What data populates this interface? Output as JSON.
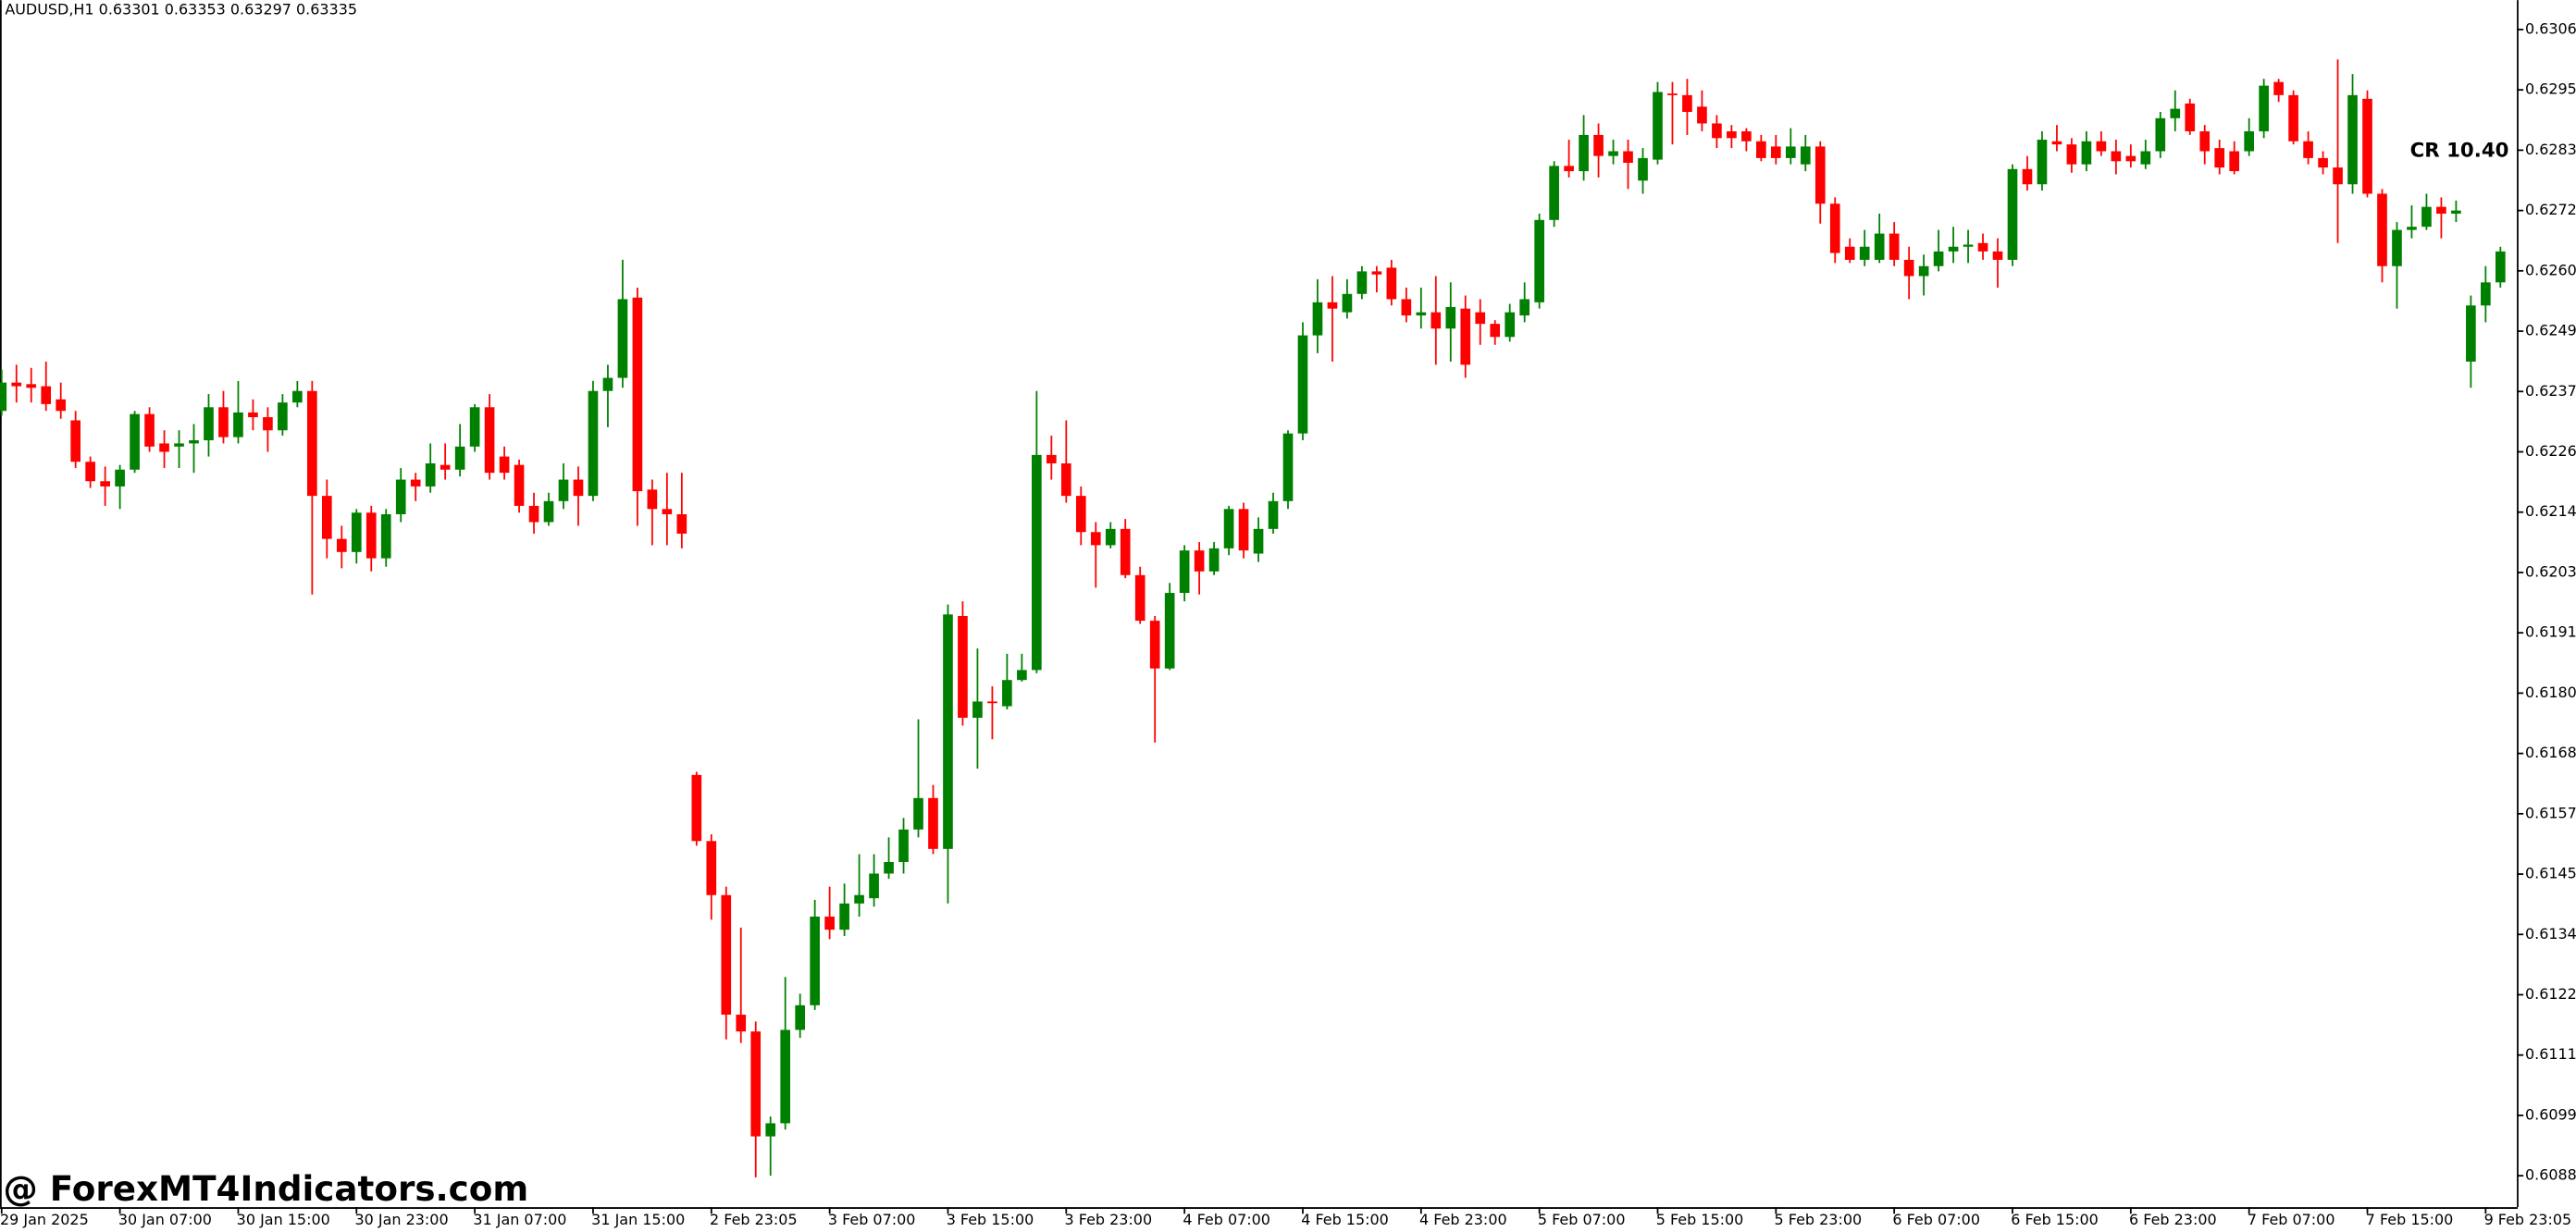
{
  "chart_data": {
    "type": "candlestick",
    "title": "AUDUSD,H1  0.63301 0.63353 0.63297 0.63335",
    "annotation": "CR 10.40",
    "annotation_color": "#1e90ff",
    "watermark": "@ ForexMT4Indicators.com",
    "up_color": "#008000",
    "down_color": "#ff0000",
    "grid": false,
    "categories": [
      "29 Jan 2025",
      null,
      null,
      null,
      null,
      null,
      null,
      null,
      "30 Jan 07:00",
      null,
      null,
      null,
      null,
      null,
      null,
      null,
      "30 Jan 15:00",
      null,
      null,
      null,
      null,
      null,
      null,
      null,
      "30 Jan 23:00",
      null,
      null,
      null,
      null,
      null,
      null,
      null,
      "31 Jan 07:00",
      null,
      null,
      null,
      null,
      null,
      null,
      null,
      "31 Jan 15:00",
      null,
      null,
      null,
      null,
      null,
      null,
      null,
      "2 Feb 23:05",
      null,
      null,
      null,
      null,
      null,
      null,
      null,
      "3 Feb 07:00",
      null,
      null,
      null,
      null,
      null,
      null,
      null,
      "3 Feb 15:00",
      null,
      null,
      null,
      null,
      null,
      null,
      null,
      "3 Feb 23:00",
      null,
      null,
      null,
      null,
      null,
      null,
      null,
      "4 Feb 07:00",
      null,
      null,
      null,
      null,
      null,
      null,
      null,
      "4 Feb 15:00",
      null,
      null,
      null,
      null,
      null,
      null,
      null,
      "4 Feb 23:00",
      null,
      null,
      null,
      null,
      null,
      null,
      null,
      "5 Feb 07:00",
      null,
      null,
      null,
      null,
      null,
      null,
      null,
      "5 Feb 15:00",
      null,
      null,
      null,
      null,
      null,
      null,
      null,
      "5 Feb 23:00",
      null,
      null,
      null,
      null,
      null,
      null,
      null,
      "6 Feb 07:00",
      null,
      null,
      null,
      null,
      null,
      null,
      null,
      "6 Feb 15:00",
      null,
      null,
      null,
      null,
      null,
      null,
      null,
      "6 Feb 23:00",
      null,
      null,
      null,
      null,
      null,
      null,
      null,
      "7 Feb 07:00",
      null,
      null,
      null,
      null,
      null,
      null,
      null,
      "7 Feb 15:00",
      null,
      null,
      null,
      null,
      null,
      null,
      null,
      "9 Feb 23:05",
      null
    ],
    "open": [
      0.62338,
      0.62392,
      0.62389,
      0.62385,
      0.6236,
      0.6232,
      0.62241,
      0.62204,
      0.62194,
      0.62226,
      0.62332,
      0.62276,
      0.6227,
      0.62276,
      0.62282,
      0.62345,
      0.62288,
      0.62335,
      0.62326,
      0.62301,
      0.62354,
      0.62376,
      0.62176,
      0.62094,
      0.62069,
      0.62144,
      0.62057,
      0.62141,
      0.62207,
      0.62194,
      0.62235,
      0.62226,
      0.6227,
      0.62345,
      0.62251,
      0.62235,
      0.62157,
      0.62126,
      0.62166,
      0.62207,
      0.62176,
      0.62376,
      0.62401,
      0.62554,
      0.62188,
      0.62151,
      0.62141,
      0.61644,
      0.61518,
      0.61415,
      0.61187,
      0.61155,
      0.60955,
      0.6098,
      0.61158,
      0.61205,
      0.61374,
      0.61349,
      0.61399,
      0.61409,
      0.61456,
      0.61478,
      0.6154,
      0.616,
      0.61503,
      0.61947,
      0.61753,
      0.61784,
      0.61775,
      0.61825,
      0.61844,
      0.62254,
      0.62238,
      0.62176,
      0.62107,
      0.62082,
      0.62113,
      0.62025,
      0.61938,
      0.61847,
      0.61991,
      0.62072,
      0.62032,
      0.62076,
      0.62151,
      0.62066,
      0.62113,
      0.62166,
      0.62295,
      0.62482,
      0.62545,
      0.62526,
      0.62561,
      0.62604,
      0.62611,
      0.62551,
      0.6252,
      0.62526,
      0.62495,
      0.62533,
      0.62526,
      0.62504,
      0.62479,
      0.6252,
      0.62545,
      0.62702,
      0.62805,
      0.62795,
      0.62864,
      0.62824,
      0.62833,
      0.62777,
      0.62817,
      0.62943,
      0.6294,
      0.62918,
      0.62886,
      0.62871,
      0.62871,
      0.62852,
      0.62842,
      0.6282,
      0.62808,
      0.62842,
      0.62733,
      0.62651,
      0.62626,
      0.62626,
      0.62676,
      0.62626,
      0.62595,
      0.62614,
      0.62642,
      0.62651,
      0.62658,
      0.62642,
      0.62626,
      0.62799,
      0.6277,
      0.62852,
      0.62846,
      0.62808,
      0.62852,
      0.62833,
      0.62824,
      0.62808,
      0.62833,
      0.62896,
      0.62924,
      0.62871,
      0.62839,
      0.62833,
      0.62833,
      0.62871,
      0.62965,
      0.6294,
      0.62852,
      0.6282,
      0.62802,
      0.6277,
      0.62933,
      0.62752,
      0.62614,
      0.62683,
      0.62689,
      0.62727,
      0.62714,
      0.62432,
      0.62539,
      0.62583
    ],
    "high": [
      0.62417,
      0.62426,
      0.6242,
      0.62432,
      0.62392,
      0.62338,
      0.62251,
      0.62232,
      0.62235,
      0.62338,
      0.62345,
      0.62301,
      0.62301,
      0.62313,
      0.6237,
      0.62376,
      0.62395,
      0.6236,
      0.62345,
      0.6237,
      0.62395,
      0.62395,
      0.62207,
      0.62119,
      0.62151,
      0.62157,
      0.62151,
      0.62229,
      0.6222,
      0.62276,
      0.62276,
      0.62313,
      0.62351,
      0.6237,
      0.6227,
      0.62245,
      0.62182,
      0.62182,
      0.62238,
      0.62232,
      0.62395,
      0.62426,
      0.62626,
      0.62573,
      0.62207,
      0.6222,
      0.6222,
      0.6165,
      0.61531,
      0.61431,
      0.61353,
      0.61174,
      0.60993,
      0.61259,
      0.61227,
      0.61406,
      0.61431,
      0.61437,
      0.61493,
      0.61493,
      0.61525,
      0.61562,
      0.6175,
      0.61625,
      0.61969,
      0.61975,
      0.61885,
      0.61813,
      0.61875,
      0.61875,
      0.62376,
      0.62291,
      0.6232,
      0.62194,
      0.62126,
      0.62126,
      0.62132,
      0.62041,
      0.61947,
      0.6201,
      0.62082,
      0.62088,
      0.62088,
      0.62157,
      0.62163,
      0.62135,
      0.62182,
      0.62301,
      0.62507,
      0.62589,
      0.62595,
      0.62589,
      0.62614,
      0.62614,
      0.62626,
      0.62573,
      0.62573,
      0.62595,
      0.62583,
      0.62558,
      0.62551,
      0.62511,
      0.62542,
      0.62583,
      0.62714,
      0.62814,
      0.62855,
      0.62902,
      0.62886,
      0.62855,
      0.62855,
      0.62839,
      0.62965,
      0.62965,
      0.62971,
      0.62949,
      0.62902,
      0.62883,
      0.62877,
      0.62864,
      0.62864,
      0.62877,
      0.62864,
      0.62852,
      0.62745,
      0.62667,
      0.62683,
      0.62714,
      0.62698,
      0.62651,
      0.62636,
      0.62683,
      0.62689,
      0.62683,
      0.62676,
      0.62667,
      0.62808,
      0.62824,
      0.62871,
      0.62883,
      0.62858,
      0.62871,
      0.62871,
      0.62855,
      0.62846,
      0.62855,
      0.62908,
      0.62949,
      0.62933,
      0.62883,
      0.62855,
      0.62852,
      0.62896,
      0.62971,
      0.62971,
      0.62949,
      0.62871,
      0.62833,
      0.63008,
      0.6298,
      0.62949,
      0.62761,
      0.62698,
      0.6273,
      0.62752,
      0.62745,
      0.62739,
      0.62558,
      0.62614,
      0.62651
    ],
    "low": [
      0.62329,
      0.62354,
      0.62354,
      0.62338,
      0.62323,
      0.62229,
      0.62191,
      0.62157,
      0.62151,
      0.6222,
      0.6226,
      0.62229,
      0.62229,
      0.6222,
      0.62251,
      0.62276,
      0.62276,
      0.62301,
      0.6226,
      0.62291,
      0.62345,
      0.61988,
      0.62057,
      0.62038,
      0.62047,
      0.62032,
      0.62041,
      0.62126,
      0.62166,
      0.62182,
      0.62207,
      0.62213,
      0.6226,
      0.62207,
      0.62207,
      0.62144,
      0.62104,
      0.62119,
      0.62151,
      0.62119,
      0.62166,
      0.62307,
      0.62382,
      0.62119,
      0.62082,
      0.62082,
      0.62076,
      0.61509,
      0.61368,
      0.6114,
      0.61133,
      0.60877,
      0.6088,
      0.60968,
      0.61143,
      0.61196,
      0.61331,
      0.61337,
      0.61374,
      0.61393,
      0.61446,
      0.61456,
      0.61525,
      0.61493,
      0.61399,
      0.61738,
      0.61656,
      0.61712,
      0.61769,
      0.61822,
      0.61838,
      0.62207,
      0.62163,
      0.62082,
      0.62001,
      0.62076,
      0.62019,
      0.61932,
      0.61706,
      0.61844,
      0.61975,
      0.61988,
      0.62025,
      0.62063,
      0.62057,
      0.6205,
      0.62104,
      0.62151,
      0.62282,
      0.62448,
      0.62432,
      0.62514,
      0.62551,
      0.62564,
      0.62539,
      0.62507,
      0.62495,
      0.62426,
      0.62432,
      0.62401,
      0.62464,
      0.62464,
      0.6247,
      0.62507,
      0.62533,
      0.62689,
      0.62783,
      0.62777,
      0.62783,
      0.62808,
      0.62761,
      0.62752,
      0.62808,
      0.62846,
      0.62864,
      0.62871,
      0.62839,
      0.62839,
      0.62833,
      0.62814,
      0.62808,
      0.62808,
      0.62795,
      0.62695,
      0.6262,
      0.6262,
      0.62614,
      0.6262,
      0.62614,
      0.62551,
      0.62558,
      0.62604,
      0.6262,
      0.6262,
      0.62626,
      0.62573,
      0.62614,
      0.62758,
      0.62758,
      0.62833,
      0.62792,
      0.62795,
      0.62824,
      0.62789,
      0.62802,
      0.62799,
      0.6282,
      0.62871,
      0.62864,
      0.62808,
      0.62789,
      0.62789,
      0.62824,
      0.62858,
      0.62927,
      0.62846,
      0.62808,
      0.62789,
      0.62658,
      0.62752,
      0.62745,
      0.62583,
      0.62533,
      0.62667,
      0.62683,
      0.62667,
      0.62698,
      0.62382,
      0.62507,
      0.62573
    ],
    "close": [
      0.62392,
      0.62385,
      0.62382,
      0.62351,
      0.62338,
      0.62241,
      0.62204,
      0.62194,
      0.62226,
      0.62332,
      0.6227,
      0.6226,
      0.62276,
      0.62282,
      0.62345,
      0.62288,
      0.62335,
      0.62326,
      0.62301,
      0.62354,
      0.62376,
      0.62176,
      0.62094,
      0.62069,
      0.62144,
      0.62057,
      0.62141,
      0.62207,
      0.62194,
      0.62238,
      0.62226,
      0.6227,
      0.62345,
      0.6222,
      0.6222,
      0.62157,
      0.62126,
      0.62166,
      0.62207,
      0.62176,
      0.62376,
      0.62401,
      0.62551,
      0.62185,
      0.62151,
      0.62141,
      0.62104,
      0.61518,
      0.61415,
      0.61187,
      0.61155,
      0.60955,
      0.6098,
      0.61158,
      0.61205,
      0.61374,
      0.61349,
      0.61399,
      0.61415,
      0.61456,
      0.61478,
      0.6154,
      0.616,
      0.61503,
      0.6195,
      0.61753,
      0.61784,
      0.61781,
      0.61825,
      0.61844,
      0.62254,
      0.62238,
      0.62176,
      0.62107,
      0.62082,
      0.62113,
      0.62025,
      0.61938,
      0.61847,
      0.61991,
      0.62072,
      0.62032,
      0.62076,
      0.62151,
      0.62072,
      0.62113,
      0.62166,
      0.62295,
      0.62482,
      0.62545,
      0.62533,
      0.62561,
      0.62604,
      0.62598,
      0.62551,
      0.6252,
      0.62526,
      0.62495,
      0.62536,
      0.62426,
      0.62504,
      0.62479,
      0.62526,
      0.62551,
      0.62702,
      0.62805,
      0.62795,
      0.62864,
      0.62824,
      0.62833,
      0.62811,
      0.6282,
      0.62946,
      0.6294,
      0.62908,
      0.62886,
      0.62858,
      0.62858,
      0.62852,
      0.6282,
      0.6282,
      0.62842,
      0.62842,
      0.62733,
      0.62639,
      0.62626,
      0.62651,
      0.62676,
      0.62626,
      0.62595,
      0.62614,
      0.62642,
      0.62651,
      0.62655,
      0.62642,
      0.62626,
      0.62799,
      0.6277,
      0.62855,
      0.62846,
      0.62808,
      0.62852,
      0.62833,
      0.62814,
      0.62814,
      0.62833,
      0.62896,
      0.62914,
      0.62871,
      0.62833,
      0.62802,
      0.62795,
      0.62871,
      0.62958,
      0.6294,
      0.62852,
      0.6282,
      0.62802,
      0.6277,
      0.6294,
      0.62752,
      0.62614,
      0.62683,
      0.62689,
      0.62727,
      0.62714,
      0.6272,
      0.62539,
      0.62583,
      0.62642
    ],
    "ylim": [
      0.6082,
      0.63121
    ],
    "yticks": [
      0.63065,
      {
        "value": 0.6295,
        "label": "0.62950"
      },
      0.62835,
      {
        "value": 0.6272,
        "label": "0.62720"
      },
      0.62605,
      {
        "value": 0.6249,
        "label": "0.62490"
      },
      0.62375,
      {
        "value": 0.6226,
        "label": "0.62260"
      },
      0.62145,
      {
        "value": 0.6203,
        "label": "0.62030"
      },
      0.61915,
      {
        "value": 0.618,
        "label": "0.61800"
      },
      0.61685,
      {
        "value": 0.6157,
        "label": "0.61570"
      },
      0.61455,
      {
        "value": 0.6134,
        "label": "0.61340"
      },
      0.61225,
      {
        "value": 0.6111,
        "label": "0.61110"
      },
      0.60995,
      {
        "value": 0.6088,
        "label": "0.60880"
      }
    ]
  }
}
